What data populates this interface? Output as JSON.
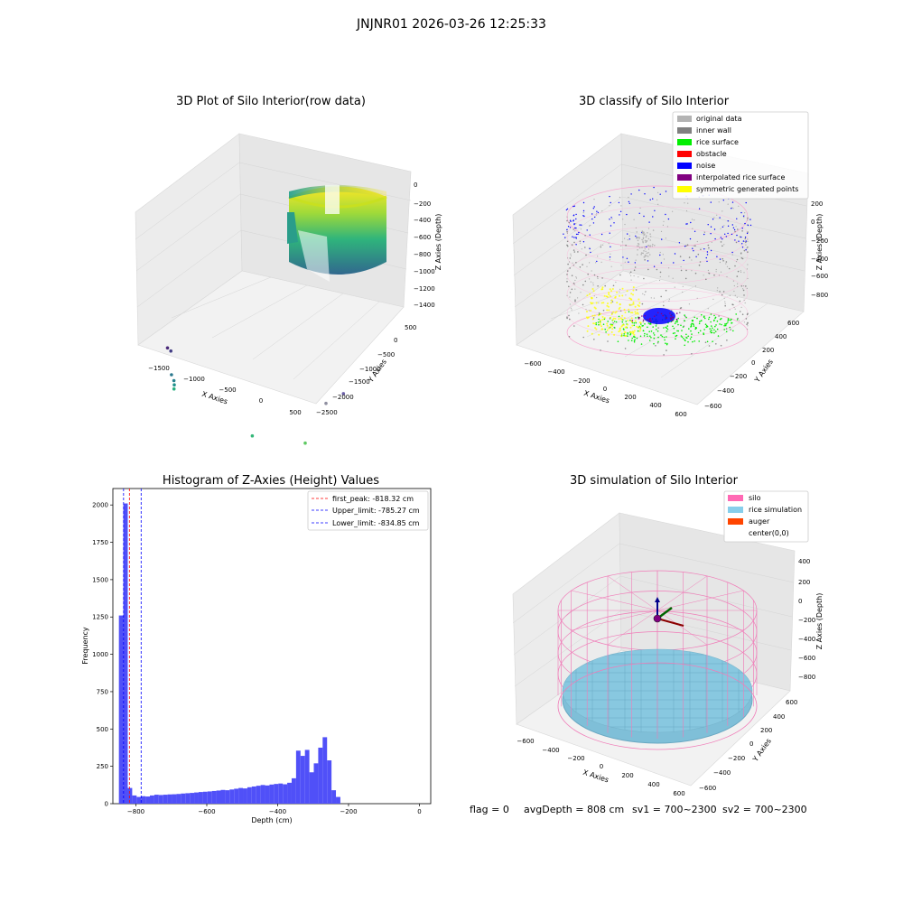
{
  "figure": {
    "suptitle": "JNJNR01 2026-03-26 12:25:33",
    "status": {
      "flag": "flag = 0",
      "avg_depth": "avgDepth = 808 cm",
      "sv1": "sv1 = 700~2300",
      "sv2": "sv2 = 700~2300"
    }
  },
  "colors": {
    "hist_bar": "#5050f8",
    "first_peak": "#ff0000",
    "limits": "#0000ff",
    "silo_wire": "#f07cb8",
    "rice_sim": "#88c8e0",
    "auger": "#ff4500",
    "inner_wall": "#808080",
    "rice_surface": "#00ee00",
    "noise": "#0000ff",
    "interpolated": "#800080",
    "symmetric": "#ffff00",
    "original": "#b3b3b3"
  },
  "chart_data": [
    {
      "type": "scatter",
      "panel": "3d-raw",
      "title": "3D Plot of Silo Interior(row data)",
      "xlabel": "X Axies",
      "ylabel": "Y Axies",
      "zlabel": "Z Axies (Depth)",
      "x_ticks": [
        "−1500",
        "−1000",
        "−500",
        "0",
        "500"
      ],
      "y_ticks": [
        "500",
        "0",
        "−500",
        "−1000",
        "−1500",
        "−2000",
        "−2500"
      ],
      "z_ticks": [
        "0",
        "−200",
        "−400",
        "−600",
        "−800",
        "−1000",
        "−1200",
        "−1400"
      ],
      "xlim": [
        -1800,
        600
      ],
      "ylim": [
        -2500,
        600
      ],
      "zlim": [
        -1400,
        0
      ],
      "colormap": "viridis",
      "outliers": [
        {
          "x": -1750,
          "y": 0,
          "z": -1200
        },
        {
          "x": -1700,
          "y": 0,
          "z": -1180
        },
        {
          "x": -1550,
          "y": 200,
          "z": -950
        },
        {
          "x": -1500,
          "y": 220,
          "z": -900
        },
        {
          "x": -1480,
          "y": 240,
          "z": -860
        },
        {
          "x": -1470,
          "y": 260,
          "z": -820
        },
        {
          "x": -200,
          "y": 400,
          "z": -600
        },
        {
          "x": 100,
          "y": -300,
          "z": -700
        },
        {
          "x": 200,
          "y": -600,
          "z": -1150
        },
        {
          "x": 250,
          "y": -900,
          "z": -1300
        }
      ]
    },
    {
      "type": "scatter",
      "panel": "3d-classify",
      "title": "3D classify of Silo Interior",
      "xlabel": "X Axies",
      "ylabel": "Y Axies",
      "zlabel": "Z Axies (Depth)",
      "x_ticks": [
        "−600",
        "−400",
        "−200",
        "0",
        "200",
        "400",
        "600"
      ],
      "y_ticks": [
        "600",
        "400",
        "200",
        "0",
        "−200",
        "−400",
        "−600"
      ],
      "z_ticks": [
        "200",
        "0",
        "−200",
        "−400",
        "−600",
        "−800"
      ],
      "xlim": [
        -650,
        650
      ],
      "ylim": [
        -650,
        650
      ],
      "zlim": [
        -900,
        250
      ],
      "legend": [
        "original data",
        "inner wall",
        "rice surface",
        "obstacle",
        "noise",
        "interpolated rice surface",
        "symmetric generated points"
      ],
      "legend_placement": "upper-right"
    },
    {
      "type": "bar",
      "panel": "histogram",
      "title": "Histogram of Z-Axies (Height) Values",
      "xlabel": "Depth (cm)",
      "ylabel": "Frequency",
      "x_ticks": [
        "−800",
        "−600",
        "−400",
        "−200",
        "0"
      ],
      "y_ticks": [
        "0",
        "250",
        "500",
        "750",
        "1000",
        "1250",
        "1500",
        "1750",
        "2000"
      ],
      "xlim": [
        -865,
        32
      ],
      "ylim": [
        0,
        2110
      ],
      "bin_width": 12.5,
      "bin_start": -848,
      "values": [
        1260,
        2010,
        105,
        55,
        45,
        50,
        48,
        55,
        60,
        58,
        60,
        62,
        63,
        65,
        68,
        70,
        72,
        75,
        78,
        80,
        82,
        85,
        88,
        92,
        90,
        95,
        100,
        105,
        102,
        110,
        115,
        120,
        125,
        122,
        128,
        132,
        135,
        130,
        140,
        170,
        355,
        320,
        360,
        210,
        270,
        375,
        445,
        290,
        90,
        45
      ],
      "lines": [
        {
          "label": "first_peak: -818.32 cm",
          "x": -818.32,
          "style": "dashed"
        },
        {
          "label": "Upper_limit: -785.27 cm",
          "x": -785.27,
          "style": "dashed"
        },
        {
          "label": "Lower_limit: -834.85 cm",
          "x": -834.85,
          "style": "dashed"
        }
      ],
      "legend_placement": "upper-right"
    },
    {
      "type": "area",
      "panel": "3d-simulation",
      "title": "3D simulation of Silo Interior",
      "xlabel": "X Axies",
      "ylabel": "Y Axies",
      "zlabel": "Z Axies (Depth)",
      "x_ticks": [
        "−600",
        "−400",
        "−200",
        "0",
        "200",
        "400",
        "600"
      ],
      "y_ticks": [
        "600",
        "400",
        "200",
        "0",
        "−200",
        "−400",
        "−600"
      ],
      "z_ticks": [
        "400",
        "200",
        "0",
        "−200",
        "−400",
        "−600",
        "−800"
      ],
      "xlim": [
        -650,
        650
      ],
      "ylim": [
        -650,
        650
      ],
      "zlim": [
        -900,
        450
      ],
      "rice_depth": -808,
      "legend": [
        "silo",
        "rice simulation",
        "auger",
        "center(0,0)"
      ],
      "legend_placement": "upper-right"
    }
  ]
}
